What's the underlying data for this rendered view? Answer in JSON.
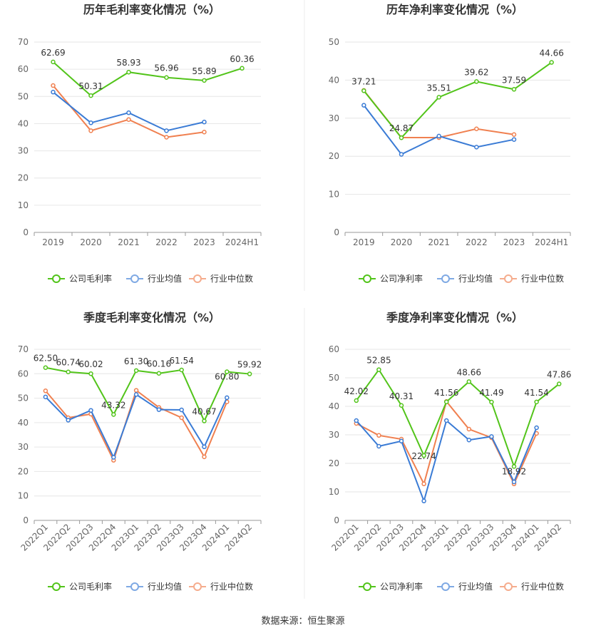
{
  "source": "数据来源：恒生聚源",
  "colors": {
    "company": "#52c41a",
    "industry_avg": "#3a7bd5",
    "industry_median": "#f08050"
  },
  "chart_data": [
    {
      "type": "line",
      "title": "历年毛利率变化情况（%）",
      "categories": [
        "2019",
        "2020",
        "2021",
        "2022",
        "2023",
        "2024H1"
      ],
      "ylim": [
        0,
        70
      ],
      "yticks": [
        0,
        10,
        20,
        30,
        40,
        50,
        60,
        70
      ],
      "grid": true,
      "legend": "bottom",
      "rotate_labels": false,
      "series": [
        {
          "name": "公司毛利率",
          "color": "#52c41a",
          "labels": true,
          "values": [
            62.69,
            50.31,
            58.93,
            56.96,
            55.89,
            60.36
          ]
        },
        {
          "name": "行业均值",
          "color": "#3a7bd5",
          "labels": false,
          "values": [
            51.6,
            40.3,
            44.0,
            37.4,
            40.6,
            null
          ]
        },
        {
          "name": "行业中位数",
          "color": "#f08050",
          "labels": false,
          "values": [
            54.0,
            37.4,
            41.5,
            35.0,
            36.9,
            null
          ]
        }
      ]
    },
    {
      "type": "line",
      "title": "历年净利率变化情况（%）",
      "categories": [
        "2019",
        "2020",
        "2021",
        "2022",
        "2023",
        "2024H1"
      ],
      "ylim": [
        0,
        50
      ],
      "yticks": [
        0,
        10,
        20,
        30,
        40,
        50
      ],
      "grid": true,
      "legend": "bottom",
      "rotate_labels": false,
      "series": [
        {
          "name": "公司净利率",
          "color": "#52c41a",
          "labels": true,
          "values": [
            37.21,
            24.87,
            35.51,
            39.62,
            37.59,
            44.66
          ]
        },
        {
          "name": "行业均值",
          "color": "#3a7bd5",
          "labels": false,
          "values": [
            33.4,
            20.5,
            25.3,
            22.4,
            24.4,
            null
          ]
        },
        {
          "name": "行业中位数",
          "color": "#f08050",
          "labels": false,
          "values": [
            37.3,
            24.9,
            24.9,
            27.2,
            25.7,
            null
          ]
        }
      ]
    },
    {
      "type": "line",
      "title": "季度毛利率变化情况（%）",
      "categories": [
        "2022Q1",
        "2022Q2",
        "2022Q3",
        "2022Q4",
        "2023Q1",
        "2023Q2",
        "2023Q3",
        "2023Q4",
        "2024Q1",
        "2024Q2"
      ],
      "ylim": [
        0,
        70
      ],
      "yticks": [
        0,
        10,
        20,
        30,
        40,
        50,
        60,
        70
      ],
      "grid": true,
      "legend": "bottom",
      "rotate_labels": true,
      "series": [
        {
          "name": "公司毛利率",
          "color": "#52c41a",
          "labels": true,
          "values": [
            62.5,
            60.74,
            60.02,
            43.32,
            61.3,
            60.16,
            61.54,
            40.67,
            60.8,
            59.92
          ]
        },
        {
          "name": "行业均值",
          "color": "#3a7bd5",
          "labels": false,
          "values": [
            50.5,
            41.0,
            45.0,
            25.8,
            51.5,
            45.3,
            45.2,
            30.1,
            50.2,
            null
          ]
        },
        {
          "name": "行业中位数",
          "color": "#f08050",
          "labels": false,
          "values": [
            53.0,
            42.0,
            43.5,
            24.6,
            53.2,
            46.2,
            42.0,
            26.0,
            48.5,
            null
          ]
        }
      ]
    },
    {
      "type": "line",
      "title": "季度净利率变化情况（%）",
      "categories": [
        "2022Q1",
        "2022Q2",
        "2022Q3",
        "2022Q4",
        "2023Q1",
        "2023Q2",
        "2023Q3",
        "2023Q4",
        "2024Q1",
        "2024Q2"
      ],
      "ylim": [
        0,
        60
      ],
      "yticks": [
        0,
        10,
        20,
        30,
        40,
        50,
        60
      ],
      "grid": true,
      "legend": "bottom",
      "rotate_labels": true,
      "series": [
        {
          "name": "公司净利率",
          "color": "#52c41a",
          "labels": true,
          "values": [
            42.02,
            52.85,
            40.31,
            22.74,
            41.56,
            48.66,
            41.49,
            18.92,
            41.54,
            47.86
          ]
        },
        {
          "name": "行业均值",
          "color": "#3a7bd5",
          "labels": false,
          "values": [
            35.0,
            26.0,
            27.8,
            6.8,
            35.0,
            28.2,
            29.4,
            13.5,
            32.5,
            null
          ]
        },
        {
          "name": "行业中位数",
          "color": "#f08050",
          "labels": false,
          "values": [
            34.0,
            29.8,
            28.5,
            12.8,
            41.7,
            32.0,
            29.0,
            12.8,
            30.5,
            null
          ]
        }
      ]
    }
  ]
}
